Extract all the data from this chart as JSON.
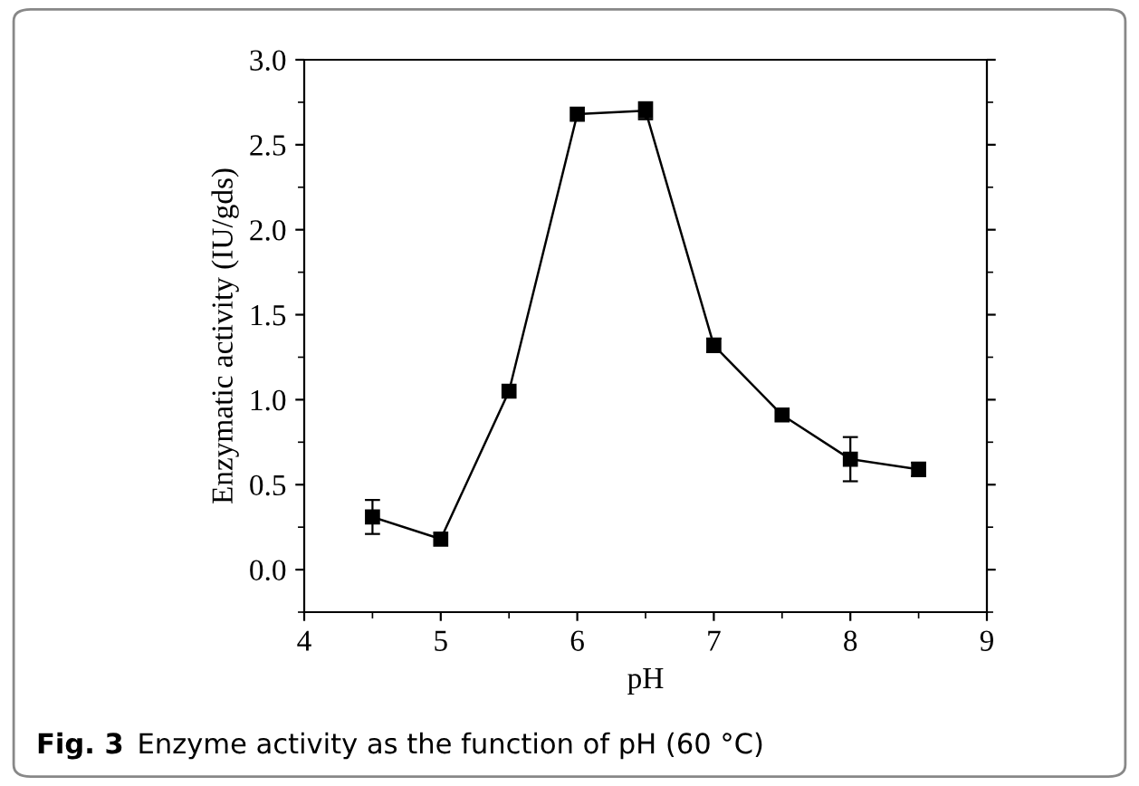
{
  "chart_data": {
    "type": "line",
    "xlabel": "pH",
    "ylabel": "Enzymatic activity (IU/gds)",
    "x": [
      4.5,
      5,
      5.5,
      6,
      6.5,
      7,
      7.5,
      8,
      8.5
    ],
    "series": [
      {
        "color": "#000000",
        "values": [
          0.31,
          0.18,
          1.05,
          2.68,
          2.7,
          1.32,
          0.91,
          0.65,
          0.59
        ],
        "errors": [
          0.1,
          null,
          null,
          null,
          0.05,
          0.04,
          null,
          0.13,
          0.04
        ]
      }
    ],
    "marker": "square",
    "line_style": "solid",
    "xlim": [
      4,
      9
    ],
    "xticks": [
      4,
      5,
      6,
      7,
      8,
      9
    ],
    "ylim": [
      -0.25,
      3.0
    ],
    "yticks": [
      {
        "value": 0,
        "label": "0.0"
      },
      0.5,
      {
        "value": 1,
        "label": "1.0"
      },
      1.5,
      {
        "value": 2,
        "label": "2.0"
      },
      2.5,
      {
        "value": 3,
        "label": "3.0"
      }
    ],
    "grid": false,
    "legend": false,
    "annotations": [
      "Fig. 3",
      "Enzyme activity as the function of pH (60 °C)"
    ]
  }
}
